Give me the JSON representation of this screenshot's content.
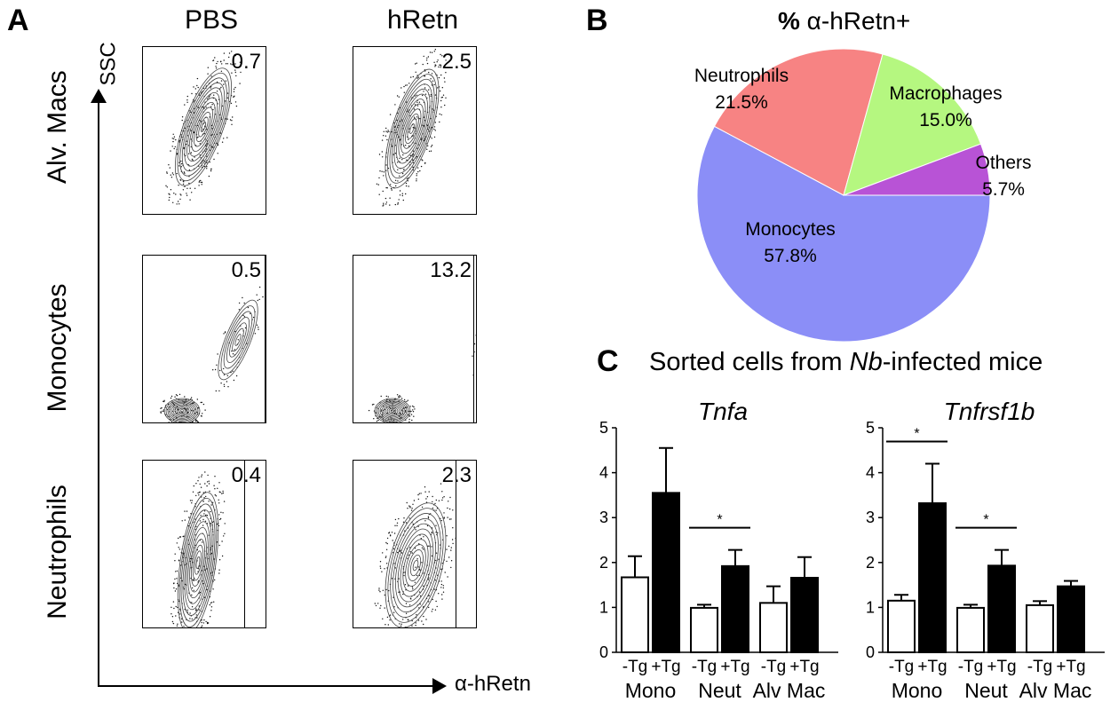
{
  "panel_a": {
    "letter": "A",
    "columns": [
      "PBS",
      "hRetn"
    ],
    "rows": [
      "Alv. Macs",
      "Monocytes",
      "Neutrophils"
    ],
    "y_axis_label": "SSC",
    "x_axis_label": "α-hRetn",
    "percentages": [
      [
        "0.7",
        "2.5"
      ],
      [
        "0.5",
        "13.2"
      ],
      [
        "0.4",
        "2.3"
      ]
    ]
  },
  "panel_b": {
    "letter": "B",
    "title_pct": "%",
    "title_rest": " α-hRetn+",
    "chart_data": {
      "type": "pie",
      "title": "% α-hRetn+",
      "slices": [
        {
          "label": "Monocytes",
          "value": 57.8,
          "text": "57.8%",
          "color": "#8b8ef7"
        },
        {
          "label": "Neutrophils",
          "value": 21.5,
          "text": "21.5%",
          "color": "#f78383"
        },
        {
          "label": "Macrophages",
          "value": 15.0,
          "text": "15.0%",
          "color": "#b5f780"
        },
        {
          "label": "Others",
          "value": 5.7,
          "text": "5.7%",
          "color": "#b853d6"
        }
      ]
    }
  },
  "panel_c": {
    "letter": "C",
    "title_pre": "Sorted cells from ",
    "title_italic": "Nb",
    "title_post": "-infected mice",
    "chart_data": [
      {
        "type": "bar",
        "title": "Tnfa",
        "ylim": [
          0,
          5
        ],
        "yticks": [
          "0",
          "1",
          "2",
          "3",
          "4",
          "5"
        ],
        "bar_labels": [
          "-Tg",
          "+Tg",
          "-Tg",
          "+Tg",
          "-Tg",
          "+Tg"
        ],
        "groups": [
          "Mono",
          "Neut",
          "Alv Mac"
        ],
        "values": [
          1.67,
          3.55,
          0.99,
          1.92,
          1.1,
          1.66
        ],
        "errors": [
          0.47,
          1.0,
          0.07,
          0.36,
          0.37,
          0.46
        ],
        "fills": [
          "#ffffff",
          "#000000",
          "#ffffff",
          "#000000",
          "#ffffff",
          "#000000"
        ],
        "significance": [
          {
            "group": "Neut",
            "label": "*"
          }
        ]
      },
      {
        "type": "bar",
        "title": "Tnfrsf1b",
        "ylim": [
          0,
          5
        ],
        "yticks": [
          "0",
          "1",
          "2",
          "3",
          "4",
          "5"
        ],
        "bar_labels": [
          "-Tg",
          "+Tg",
          "-Tg",
          "+Tg",
          "-Tg",
          "+Tg"
        ],
        "groups": [
          "Mono",
          "Neut",
          "Alv Mac"
        ],
        "values": [
          1.15,
          3.32,
          0.99,
          1.93,
          1.05,
          1.47
        ],
        "errors": [
          0.13,
          0.88,
          0.07,
          0.35,
          0.09,
          0.12
        ],
        "fills": [
          "#ffffff",
          "#000000",
          "#ffffff",
          "#000000",
          "#ffffff",
          "#000000"
        ],
        "significance": [
          {
            "group": "Mono",
            "label": "*"
          },
          {
            "group": "Neut",
            "label": "*"
          }
        ]
      }
    ]
  }
}
